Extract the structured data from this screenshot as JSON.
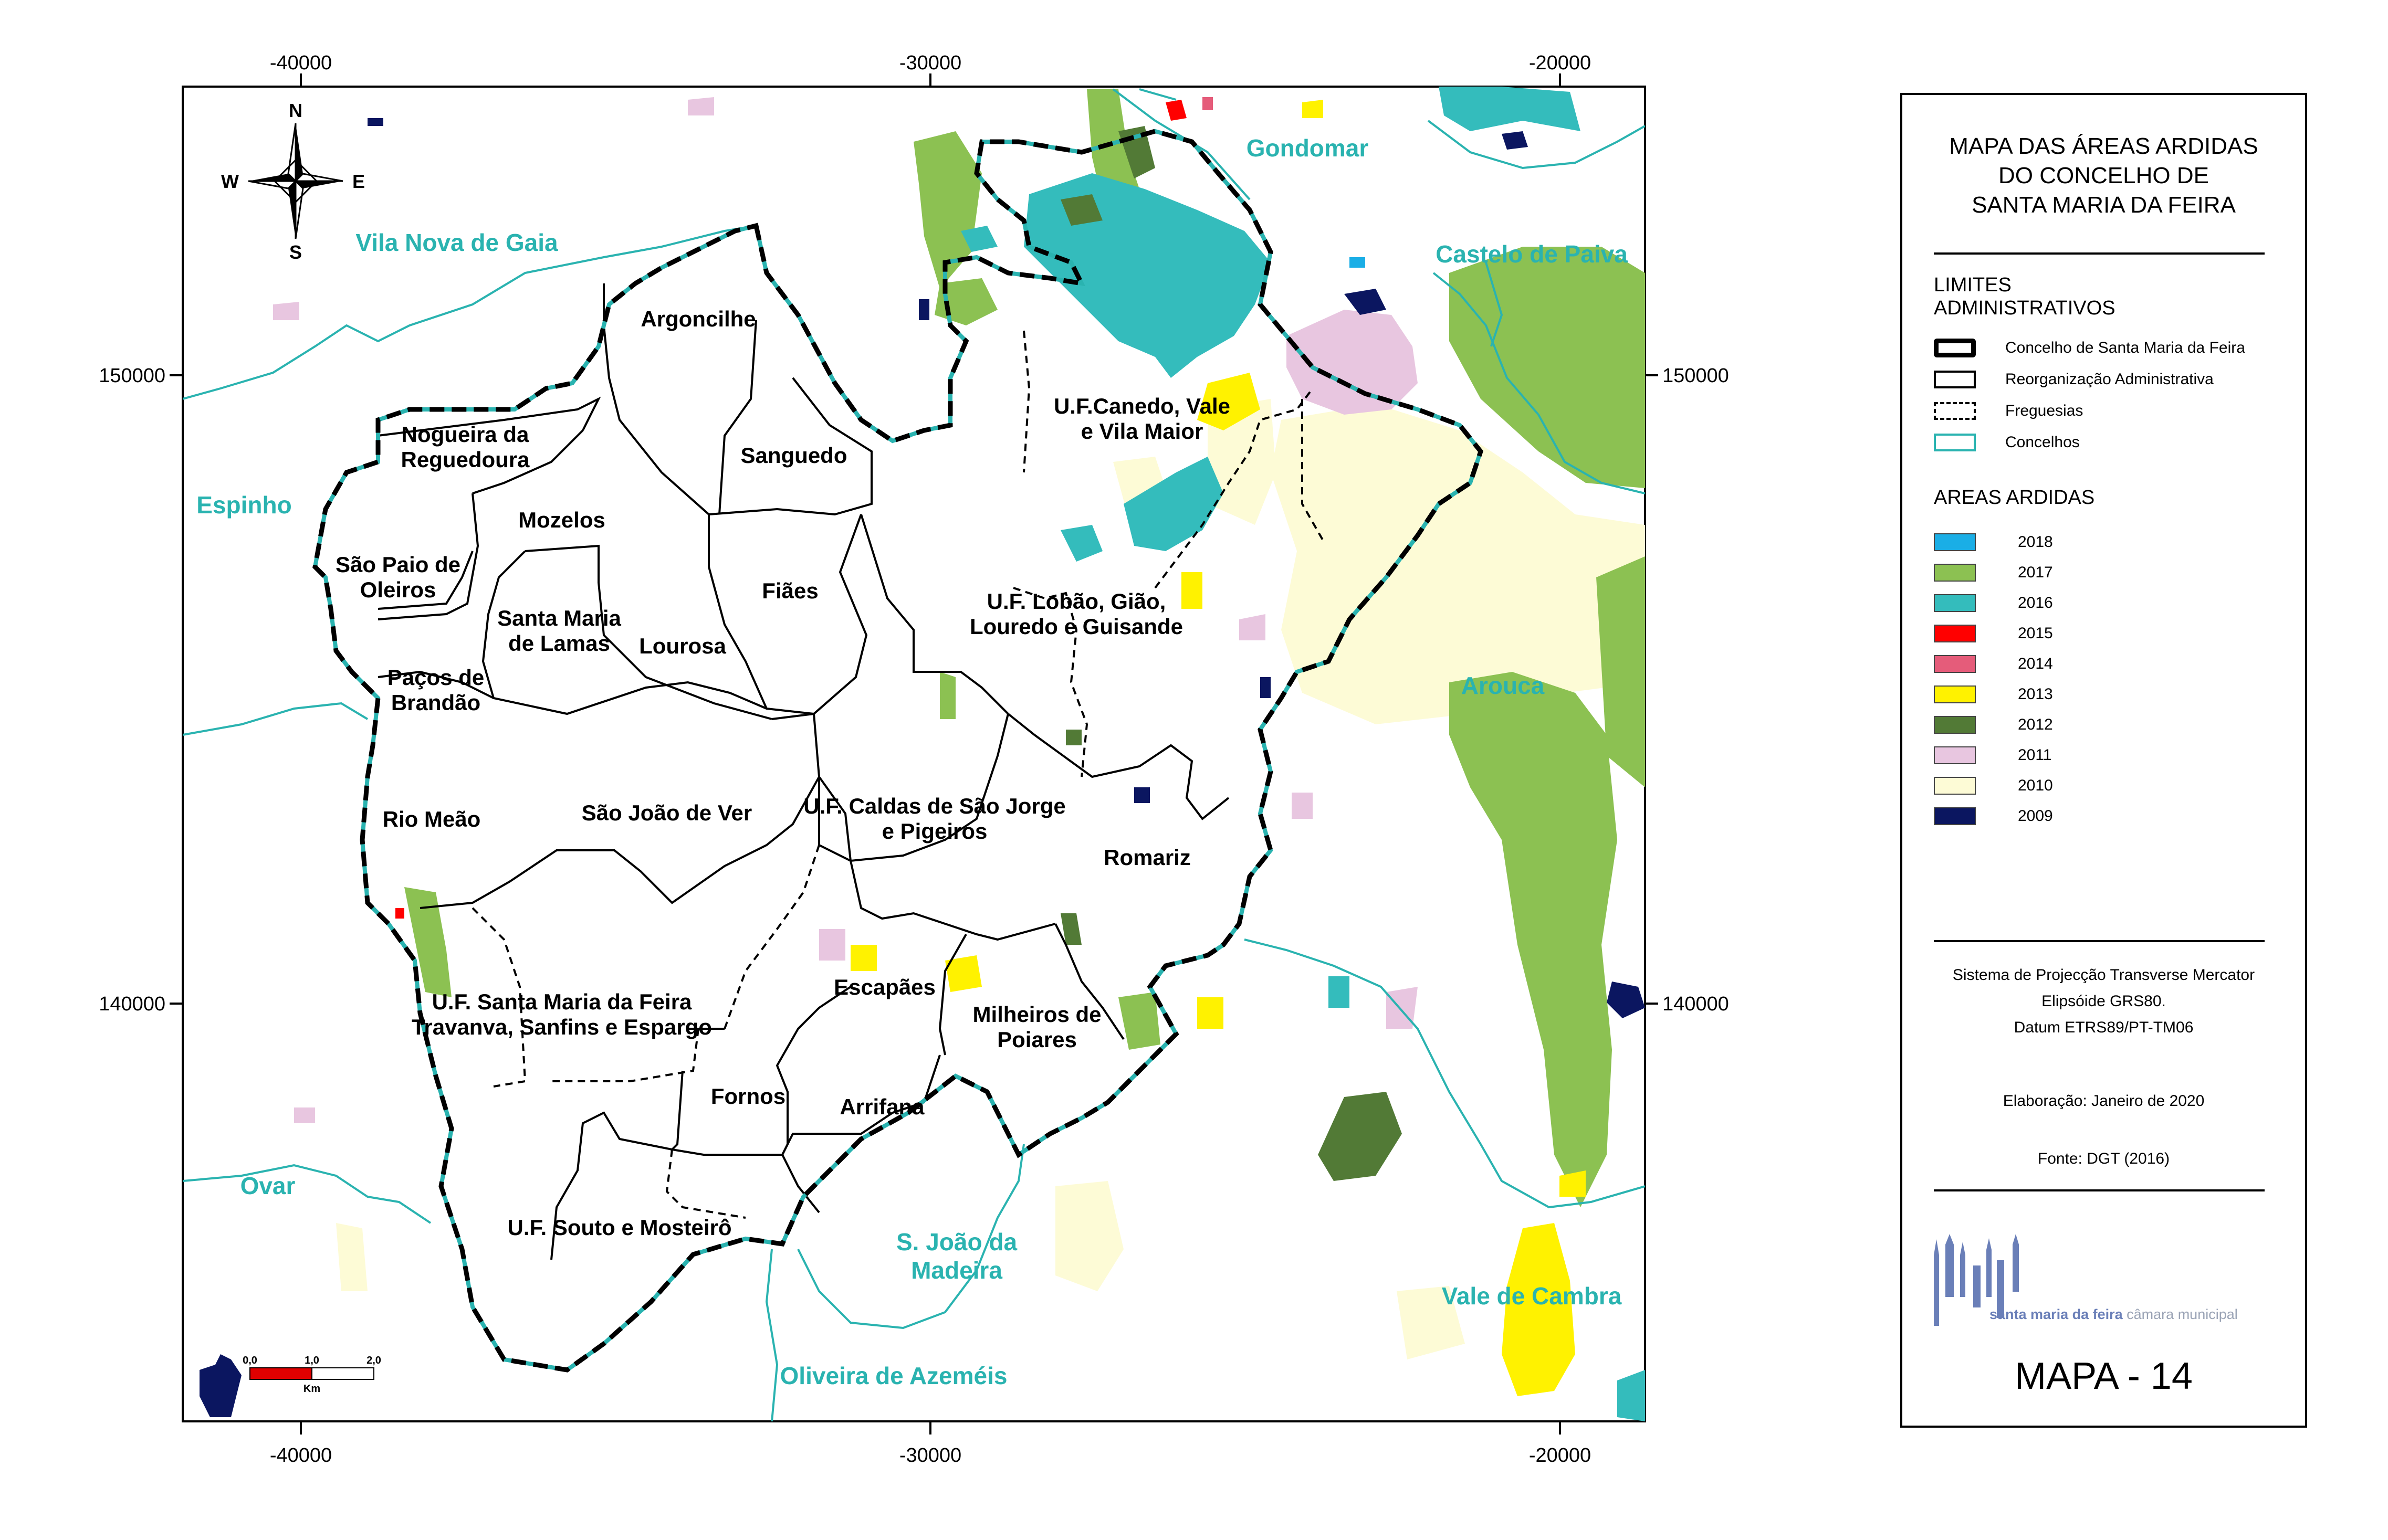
{
  "map": {
    "x_ticks": [
      "-40000",
      "-30000",
      "-20000"
    ],
    "y_ticks": [
      "150000",
      "140000"
    ],
    "compass": {
      "n": "N",
      "s": "S",
      "e": "E",
      "w": "W"
    },
    "scale": {
      "labels": [
        "0,0",
        "1,0",
        "2,0"
      ],
      "unit": "Km"
    },
    "parishes": [
      {
        "id": "argoncilhe",
        "lines": [
          "Argoncilhe"
        ]
      },
      {
        "id": "nogueira",
        "lines": [
          "Nogueira da",
          "Reguedoura"
        ]
      },
      {
        "id": "sanguedo",
        "lines": [
          "Sanguedo"
        ]
      },
      {
        "id": "canedo",
        "lines": [
          "U.F.Canedo, Vale",
          "e Vila Maior"
        ]
      },
      {
        "id": "mozelos",
        "lines": [
          "Mozelos"
        ]
      },
      {
        "id": "sao-paio",
        "lines": [
          "São Paio de",
          "Oleiros"
        ]
      },
      {
        "id": "fiaes",
        "lines": [
          "Fiães"
        ]
      },
      {
        "id": "santa-maria-lamas",
        "lines": [
          "Santa Maria",
          "de Lamas"
        ]
      },
      {
        "id": "lourosa",
        "lines": [
          "Lourosa"
        ]
      },
      {
        "id": "lobao",
        "lines": [
          "U.F. Lobão, Gião,",
          "Louredo e Guisande"
        ]
      },
      {
        "id": "pacos",
        "lines": [
          "Paços de",
          "Brandão"
        ]
      },
      {
        "id": "rio-meao",
        "lines": [
          "Rio Meão"
        ]
      },
      {
        "id": "sao-joao-ver",
        "lines": [
          "São João de Ver"
        ]
      },
      {
        "id": "caldas",
        "lines": [
          "U.F. Caldas de São Jorge",
          "e Pigeiros"
        ]
      },
      {
        "id": "romariz",
        "lines": [
          "Romariz"
        ]
      },
      {
        "id": "feira",
        "lines": [
          "U.F. Santa Maria da Feira",
          "Travanva, Sanfins e Espargo"
        ]
      },
      {
        "id": "escapaes",
        "lines": [
          "Escapães"
        ]
      },
      {
        "id": "milheiros",
        "lines": [
          "Milheiros de",
          "Poiares"
        ]
      },
      {
        "id": "fornos",
        "lines": [
          "Fornos"
        ]
      },
      {
        "id": "arrifana",
        "lines": [
          "Arrifana"
        ]
      },
      {
        "id": "souto",
        "lines": [
          "U.F. Souto e Mosteirô"
        ]
      }
    ],
    "concelhos": [
      {
        "id": "gaia",
        "lines": [
          "Vila Nova de Gaia"
        ]
      },
      {
        "id": "gondomar",
        "lines": [
          "Gondomar"
        ]
      },
      {
        "id": "paiva",
        "lines": [
          "Castelo de Paiva"
        ]
      },
      {
        "id": "espinho",
        "lines": [
          "Espinho"
        ]
      },
      {
        "id": "arouca",
        "lines": [
          "Arouca"
        ]
      },
      {
        "id": "ovar",
        "lines": [
          "Ovar"
        ]
      },
      {
        "id": "sjm",
        "lines": [
          "S. João da",
          "Madeira"
        ]
      },
      {
        "id": "cambra",
        "lines": [
          "Vale de Cambra"
        ]
      },
      {
        "id": "azemeis",
        "lines": [
          "Oliveira de Azeméis"
        ]
      }
    ]
  },
  "legend": {
    "title": [
      "MAPA DAS ÁREAS ARDIDAS",
      "DO  CONCELHO DE",
      "SANTA MARIA DA FEIRA"
    ],
    "limits_heading": [
      "LIMITES",
      "ADMINISTRATIVOS"
    ],
    "limits": [
      {
        "label": "Concelho de Santa Maria da Feira",
        "style": "thick"
      },
      {
        "label": "Reorganização Administrativa",
        "style": "solid"
      },
      {
        "label": "Freguesias",
        "style": "dashed"
      },
      {
        "label": "Concelhos",
        "style": "teal"
      }
    ],
    "burned_heading": "AREAS ARDIDAS",
    "years": [
      {
        "year": "2018",
        "color": "#1aaee6"
      },
      {
        "year": "2017",
        "color": "#8cc152"
      },
      {
        "year": "2016",
        "color": "#34bcbc"
      },
      {
        "year": "2015",
        "color": "#ff0000"
      },
      {
        "year": "2014",
        "color": "#e55c7a"
      },
      {
        "year": "2013",
        "color": "#fff200"
      },
      {
        "year": "2012",
        "color": "#527a36"
      },
      {
        "year": "2011",
        "color": "#e8c6e0"
      },
      {
        "year": "2010",
        "color": "#fdfbd6"
      },
      {
        "year": "2009",
        "color": "#0b1660"
      }
    ],
    "info": [
      "Sistema de Projecção Transverse  Mercator",
      "Elipsóide GRS80.",
      "Datum ETRS89/PT-TM06",
      "Elaboração: Janeiro de 2020",
      "Fonte: DGT (2016)"
    ],
    "logo_text": "santa maria da feira",
    "logo_subtext": "câmara municipal",
    "map_number": "MAPA - 14"
  }
}
